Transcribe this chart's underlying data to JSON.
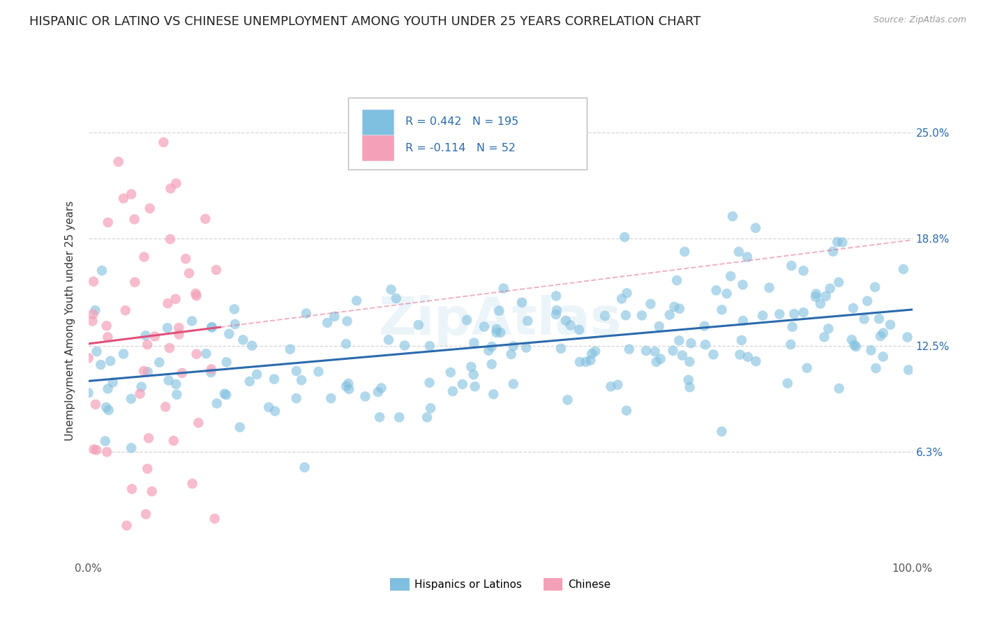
{
  "title": "HISPANIC OR LATINO VS CHINESE UNEMPLOYMENT AMONG YOUTH UNDER 25 YEARS CORRELATION CHART",
  "source": "Source: ZipAtlas.com",
  "ylabel": "Unemployment Among Youth under 25 years",
  "y_tick_labels": [
    "6.3%",
    "12.5%",
    "18.8%",
    "25.0%"
  ],
  "y_tick_values": [
    0.063,
    0.125,
    0.188,
    0.25
  ],
  "xlim": [
    0.0,
    1.0
  ],
  "ylim": [
    0.0,
    0.28
  ],
  "legend_label_1": "Hispanics or Latinos",
  "legend_label_2": "Chinese",
  "R1": 0.442,
  "N1": 195,
  "R2": -0.114,
  "N2": 52,
  "color_blue": "#7fbfdf",
  "color_pink": "#f4a0b8",
  "color_blue_line": "#2a6aad",
  "color_pink_line": "#e0507a",
  "background_color": "#ffffff",
  "grid_color": "#cccccc",
  "watermark": "ZipAtlas",
  "title_fontsize": 13,
  "axis_label_fontsize": 11,
  "tick_label_color": "#2a6aad"
}
